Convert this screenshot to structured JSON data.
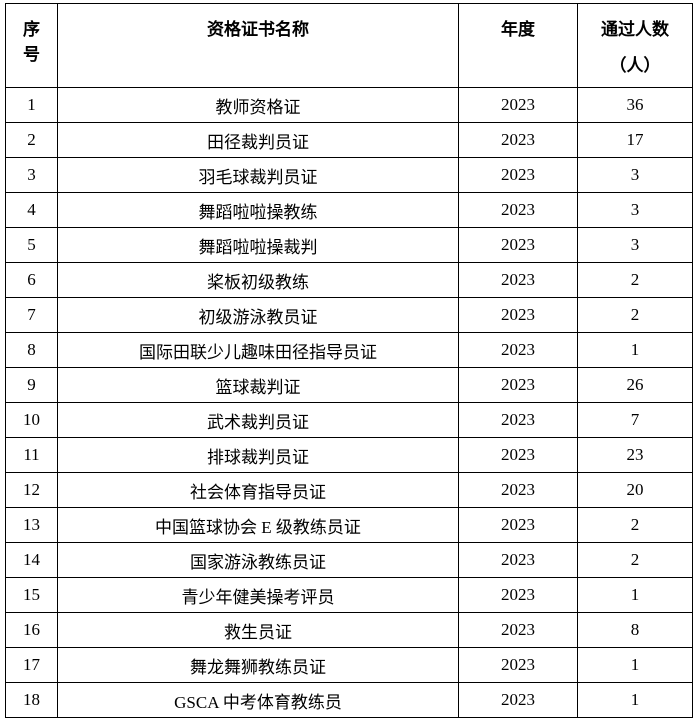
{
  "page": {
    "background_color": "#ffffff",
    "border_color": "#000000",
    "text_color": "#000000"
  },
  "table": {
    "header": {
      "no_line1": "序",
      "no_line2": "号",
      "name": "资格证书名称",
      "year": "年度",
      "count_line1": "通过人数",
      "count_line2": "（人）"
    },
    "rows": [
      {
        "no": "1",
        "name": "教师资格证",
        "year": "2023",
        "count": "36"
      },
      {
        "no": "2",
        "name": "田径裁判员证",
        "year": "2023",
        "count": "17"
      },
      {
        "no": "3",
        "name": "羽毛球裁判员证",
        "year": "2023",
        "count": "3"
      },
      {
        "no": "4",
        "name": "舞蹈啦啦操教练",
        "year": "2023",
        "count": "3"
      },
      {
        "no": "5",
        "name": "舞蹈啦啦操裁判",
        "year": "2023",
        "count": "3"
      },
      {
        "no": "6",
        "name": "桨板初级教练",
        "year": "2023",
        "count": "2"
      },
      {
        "no": "7",
        "name": "初级游泳教员证",
        "year": "2023",
        "count": "2"
      },
      {
        "no": "8",
        "name": "国际田联少儿趣味田径指导员证",
        "year": "2023",
        "count": "1"
      },
      {
        "no": "9",
        "name": "篮球裁判证",
        "year": "2023",
        "count": "26"
      },
      {
        "no": "10",
        "name": "武术裁判员证",
        "year": "2023",
        "count": "7"
      },
      {
        "no": "11",
        "name": "排球裁判员证",
        "year": "2023",
        "count": "23"
      },
      {
        "no": "12",
        "name": "社会体育指导员证",
        "year": "2023",
        "count": "20"
      },
      {
        "no": "13",
        "name": "中国篮球协会 E 级教练员证",
        "year": "2023",
        "count": "2"
      },
      {
        "no": "14",
        "name": "国家游泳教练员证",
        "year": "2023",
        "count": "2"
      },
      {
        "no": "15",
        "name": "青少年健美操考评员",
        "year": "2023",
        "count": "1"
      },
      {
        "no": "16",
        "name": "救生员证",
        "year": "2023",
        "count": "8"
      },
      {
        "no": "17",
        "name": "舞龙舞狮教练员证",
        "year": "2023",
        "count": "1"
      },
      {
        "no": "18",
        "name": "GSCA 中考体育教练员",
        "year": "2023",
        "count": "1"
      }
    ]
  }
}
